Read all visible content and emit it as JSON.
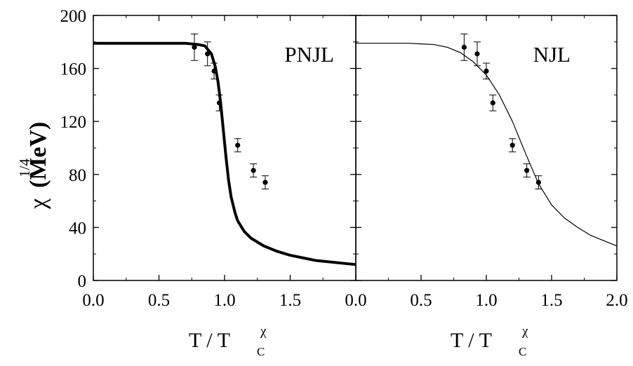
{
  "chart_data": [
    {
      "type": "scatter",
      "label": "PNJL",
      "ylabel_main": "χ",
      "ylabel_sup": "1/4",
      "ylabel_unit": "(MeV)",
      "xlabel_main": "T / T",
      "xlabel_sub": "C",
      "xlabel_sup": "χ",
      "xlim": [
        0.0,
        2.0
      ],
      "ylim": [
        0,
        200
      ],
      "xticks": [
        0.0,
        0.5,
        1.0,
        1.5
      ],
      "xticklabels": [
        "0.0",
        "0.5",
        "1.0",
        "1.5"
      ],
      "yticks": [
        0,
        40,
        80,
        120,
        160,
        200
      ],
      "yticklabels": [
        "0",
        "40",
        "80",
        "120",
        "160",
        "200"
      ],
      "grid": false,
      "series": [
        {
          "kind": "line",
          "stroke_width": 4,
          "x": [
            0.0,
            0.2,
            0.4,
            0.6,
            0.7,
            0.8,
            0.85,
            0.9,
            0.93,
            0.95,
            0.97,
            0.99,
            1.01,
            1.03,
            1.05,
            1.08,
            1.1,
            1.15,
            1.2,
            1.3,
            1.4,
            1.5,
            1.6,
            1.7,
            1.8,
            1.9,
            2.0
          ],
          "y": [
            179,
            179,
            179,
            179,
            179,
            178,
            177,
            171,
            161,
            150,
            134,
            114,
            94,
            76,
            63,
            51,
            45,
            37,
            32,
            26,
            22,
            19,
            17,
            15,
            14,
            13,
            12
          ]
        },
        {
          "kind": "points_with_errors",
          "x": [
            0.77,
            0.87,
            0.92,
            0.96,
            1.1,
            1.22,
            1.31
          ],
          "y": [
            176,
            171,
            158,
            134,
            102,
            83,
            74
          ],
          "err": [
            10,
            9,
            6,
            6,
            5,
            5,
            5
          ]
        }
      ]
    },
    {
      "type": "scatter",
      "label": "NJL",
      "xlabel_main": "T / T",
      "xlabel_sub": "C",
      "xlabel_sup": "χ",
      "xlim": [
        0.0,
        2.0
      ],
      "ylim": [
        0,
        200
      ],
      "xticks": [
        0.0,
        0.5,
        1.0,
        1.5,
        2.0
      ],
      "xticklabels": [
        "0.0",
        "0.5",
        "1.0",
        "1.5",
        "2.0"
      ],
      "grid": false,
      "series": [
        {
          "kind": "line",
          "stroke_width": 1.2,
          "x": [
            0.0,
            0.2,
            0.4,
            0.5,
            0.6,
            0.7,
            0.8,
            0.9,
            1.0,
            1.1,
            1.2,
            1.3,
            1.4,
            1.5,
            1.6,
            1.7,
            1.8,
            1.9,
            2.0
          ],
          "y": [
            179,
            179,
            179,
            178.5,
            178,
            176,
            172,
            165,
            155,
            140,
            120,
            96,
            73,
            57,
            47,
            40,
            34,
            30,
            26
          ]
        },
        {
          "kind": "points_with_errors",
          "x": [
            0.83,
            0.93,
            1.0,
            1.05,
            1.2,
            1.31,
            1.4
          ],
          "y": [
            176,
            171,
            158,
            134,
            102,
            83,
            74
          ],
          "err": [
            10,
            9,
            6,
            6,
            5,
            5,
            5
          ]
        }
      ]
    }
  ]
}
